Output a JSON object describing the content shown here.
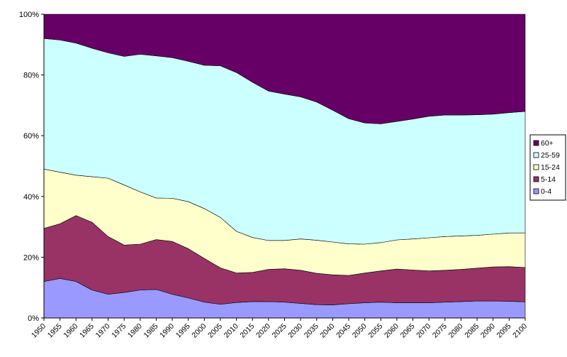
{
  "chart_data": {
    "type": "area",
    "stacking": "percent",
    "x": [
      1950,
      1955,
      1960,
      1965,
      1970,
      1975,
      1980,
      1985,
      1990,
      1995,
      2000,
      2005,
      2010,
      2015,
      2020,
      2025,
      2030,
      2035,
      2040,
      2045,
      2050,
      2055,
      2060,
      2065,
      2070,
      2075,
      2080,
      2085,
      2090,
      2095,
      2100
    ],
    "x_tick_labels": [
      "1950",
      "1955",
      "1960",
      "1965",
      "1970",
      "1975",
      "1980",
      "1985",
      "1990",
      "1995",
      "2000",
      "2005",
      "2010",
      "2015",
      "2020",
      "2025",
      "2030",
      "2035",
      "2040",
      "2045",
      "2050",
      "2055",
      "2060",
      "2065",
      "2070",
      "2075",
      "2080",
      "2085",
      "2090",
      "2095",
      "2100"
    ],
    "ylim": [
      0,
      100
    ],
    "y_tick_labels": [
      "0%",
      "20%",
      "40%",
      "60%",
      "80%",
      "100%"
    ],
    "grid": false,
    "legend_position": "right",
    "series": [
      {
        "name": "0-4",
        "color": "#9999ff",
        "values": [
          12,
          13,
          12,
          9.2,
          7.8,
          8.4,
          9.2,
          9.4,
          7.8,
          6.6,
          5.2,
          4.5,
          5.1,
          5.4,
          5.4,
          5.2,
          4.8,
          4.4,
          4.3,
          4.7,
          5.0,
          5.2,
          5.0,
          5.0,
          5.0,
          5.2,
          5.4,
          5.6,
          5.6,
          5.5,
          5.3
        ]
      },
      {
        "name": "5-14",
        "color": "#993366",
        "values": [
          17.5,
          18,
          21.7,
          22.3,
          19,
          15.6,
          15.1,
          16.4,
          17.4,
          16.2,
          14.4,
          12,
          9.7,
          9.6,
          10.6,
          11,
          10.9,
          10.3,
          9.9,
          9.3,
          9.8,
          10.3,
          11.1,
          10.8,
          10.5,
          10.5,
          10.6,
          10.8,
          11.2,
          11.4,
          11.3
        ]
      },
      {
        "name": "15-24",
        "color": "#ffffcc",
        "values": [
          19.5,
          17,
          13.3,
          15,
          19.2,
          19.8,
          17.2,
          13.7,
          14.2,
          15.5,
          16.4,
          16.6,
          13.7,
          11.5,
          9.5,
          9.3,
          10.3,
          10.9,
          10.8,
          10.4,
          9.5,
          9.3,
          9.6,
          10.2,
          10.9,
          11.1,
          11,
          10.8,
          10.8,
          11.1,
          11.4
        ]
      },
      {
        "name": "25-59",
        "color": "#ccffff",
        "values": [
          43,
          43.5,
          43.5,
          42.3,
          41.3,
          42.3,
          45.3,
          46.8,
          46.3,
          46.2,
          47.2,
          49.9,
          52.3,
          51.1,
          49.2,
          48.2,
          46.8,
          45.5,
          43.4,
          41.2,
          39.9,
          39.1,
          39,
          39.5,
          40,
          40,
          39.8,
          39.7,
          39.5,
          39.6,
          40
        ]
      },
      {
        "name": "60+",
        "color": "#660066",
        "values": [
          8,
          8.5,
          9.5,
          11.2,
          12.7,
          13.9,
          13.2,
          13.7,
          14.3,
          15.5,
          16.8,
          17,
          19.2,
          22.4,
          25.3,
          26.3,
          27.2,
          28.9,
          31.6,
          34.4,
          35.8,
          36.1,
          35.3,
          34.5,
          33.6,
          33.2,
          33.2,
          33.1,
          32.9,
          32.4,
          32
        ]
      }
    ],
    "legend_order": [
      "60+",
      "25-59",
      "15-24",
      "5-14",
      "0-4"
    ]
  }
}
